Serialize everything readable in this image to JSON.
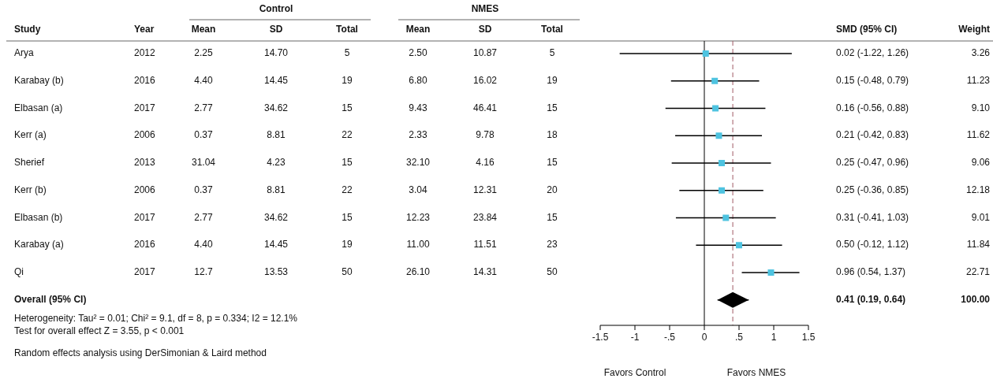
{
  "chart_data": [
    {
      "type": "other",
      "annotations": [
        "Control",
        "NMES",
        "Study",
        "Year",
        "Mean",
        "SD",
        "Total",
        "Mean",
        "SD",
        "Total",
        "SMD (95% CI)",
        "Weight",
        "Arya",
        "2012",
        "2.25",
        "14.70",
        "5",
        "2.50",
        "10.87",
        "5",
        "3.26",
        "Karabay  (b)",
        "2016",
        "4.40",
        "14.45",
        "19",
        "6.80",
        "16.02",
        "19",
        "11.23",
        "Elbasan (a)",
        "2017",
        "2.77",
        "34.62",
        "15",
        "9.43",
        "46.41",
        "15",
        "9.10",
        "Kerr (a)",
        "2006",
        "0.37",
        "8.81",
        "22",
        "2.33",
        "9.78",
        "18",
        "11.62",
        "Sherief",
        "2013",
        "31.04",
        "4.23",
        "15",
        "32.10",
        "4.16",
        "15",
        "9.06",
        "Kerr (b)",
        "2006",
        "0.37",
        "8.81",
        "22",
        "3.04",
        "12.31",
        "20",
        "12.18",
        "Elbasan (b)",
        "2017",
        "2.77",
        "34.62",
        "15",
        "12.23",
        "23.84",
        "15",
        "9.01",
        "Karabay  (a)",
        "2016",
        "4.40",
        "14.45",
        "19",
        "11.00",
        "11.51",
        "23",
        "11.84",
        "Qi",
        "2017",
        "12.7",
        "13.53",
        "50",
        "26.10",
        "14.31",
        "50",
        "22.71",
        "Overall (95% CI)",
        "0.41 (0.19, 0.64)",
        "100.00",
        "Heterogeneity: Tau² = 0.01; Chi² = 9.1, df = 8, p = 0.334; I2 = 12.1%",
        "Test for overall effect Z = 3.55, p < 0.001",
        "Random effects analysis using DerSimonian & Laird method"
      ]
    },
    {
      "type": "scatter",
      "orientation": "horizontal",
      "categories": [
        null,
        null,
        null,
        null,
        null,
        null,
        null,
        null,
        null,
        null
      ],
      "xlim": [
        -1.5,
        1.5
      ],
      "xticks": [
        -1.5,
        -1,
        {
          "value": -0.5,
          "label": "-.5"
        },
        0,
        {
          "value": 0.5,
          "label": ".5"
        },
        1,
        1.5
      ],
      "tick_labels": "x",
      "grid": false,
      "ref_lines": [
        {
          "axis": "x",
          "value": 0,
          "color": "#000000",
          "line_style": "solid"
        },
        {
          "axis": "x",
          "value": 0.41,
          "color": "#a05a64",
          "line_style": "dashed"
        }
      ],
      "annotations": [
        "Favors Control",
        "Favors NMES"
      ],
      "series": [
        {
          "type": "scatter",
          "marker": "square",
          "color": "#4ec3e0",
          "values": [
            0.02,
            0.15,
            0.16,
            0.21,
            0.25,
            0.25,
            0.31,
            0.5,
            0.96,
            null
          ],
          "errors": [
            [
              -1.22,
              1.26
            ],
            [
              -0.48,
              0.79
            ],
            [
              -0.56,
              0.88
            ],
            [
              -0.42,
              0.83
            ],
            [
              -0.47,
              0.96
            ],
            [
              -0.36,
              0.85
            ],
            [
              -0.41,
              1.03
            ],
            [
              -0.12,
              1.12
            ],
            [
              0.54,
              1.37
            ],
            null
          ],
          "value_labels": [
            "0.02 (-1.22, 1.26)",
            "0.15 (-0.48, 0.79)",
            "0.16 (-0.56, 0.88)",
            "0.21 (-0.42, 0.83)",
            "0.25 (-0.47, 0.96)",
            "0.25 (-0.36, 0.85)",
            "0.31 (-0.41, 1.03)",
            "0.50 (-0.12, 1.12)",
            "0.96 (0.54, 1.37)",
            null
          ]
        },
        {
          "type": "scatter",
          "marker": "diamond",
          "color": "#000000",
          "values": [
            null,
            null,
            null,
            null,
            null,
            null,
            null,
            null,
            null,
            0.41
          ],
          "errors": [
            null,
            null,
            null,
            null,
            null,
            null,
            null,
            null,
            null,
            [
              0.19,
              0.64
            ]
          ]
        }
      ]
    }
  ]
}
